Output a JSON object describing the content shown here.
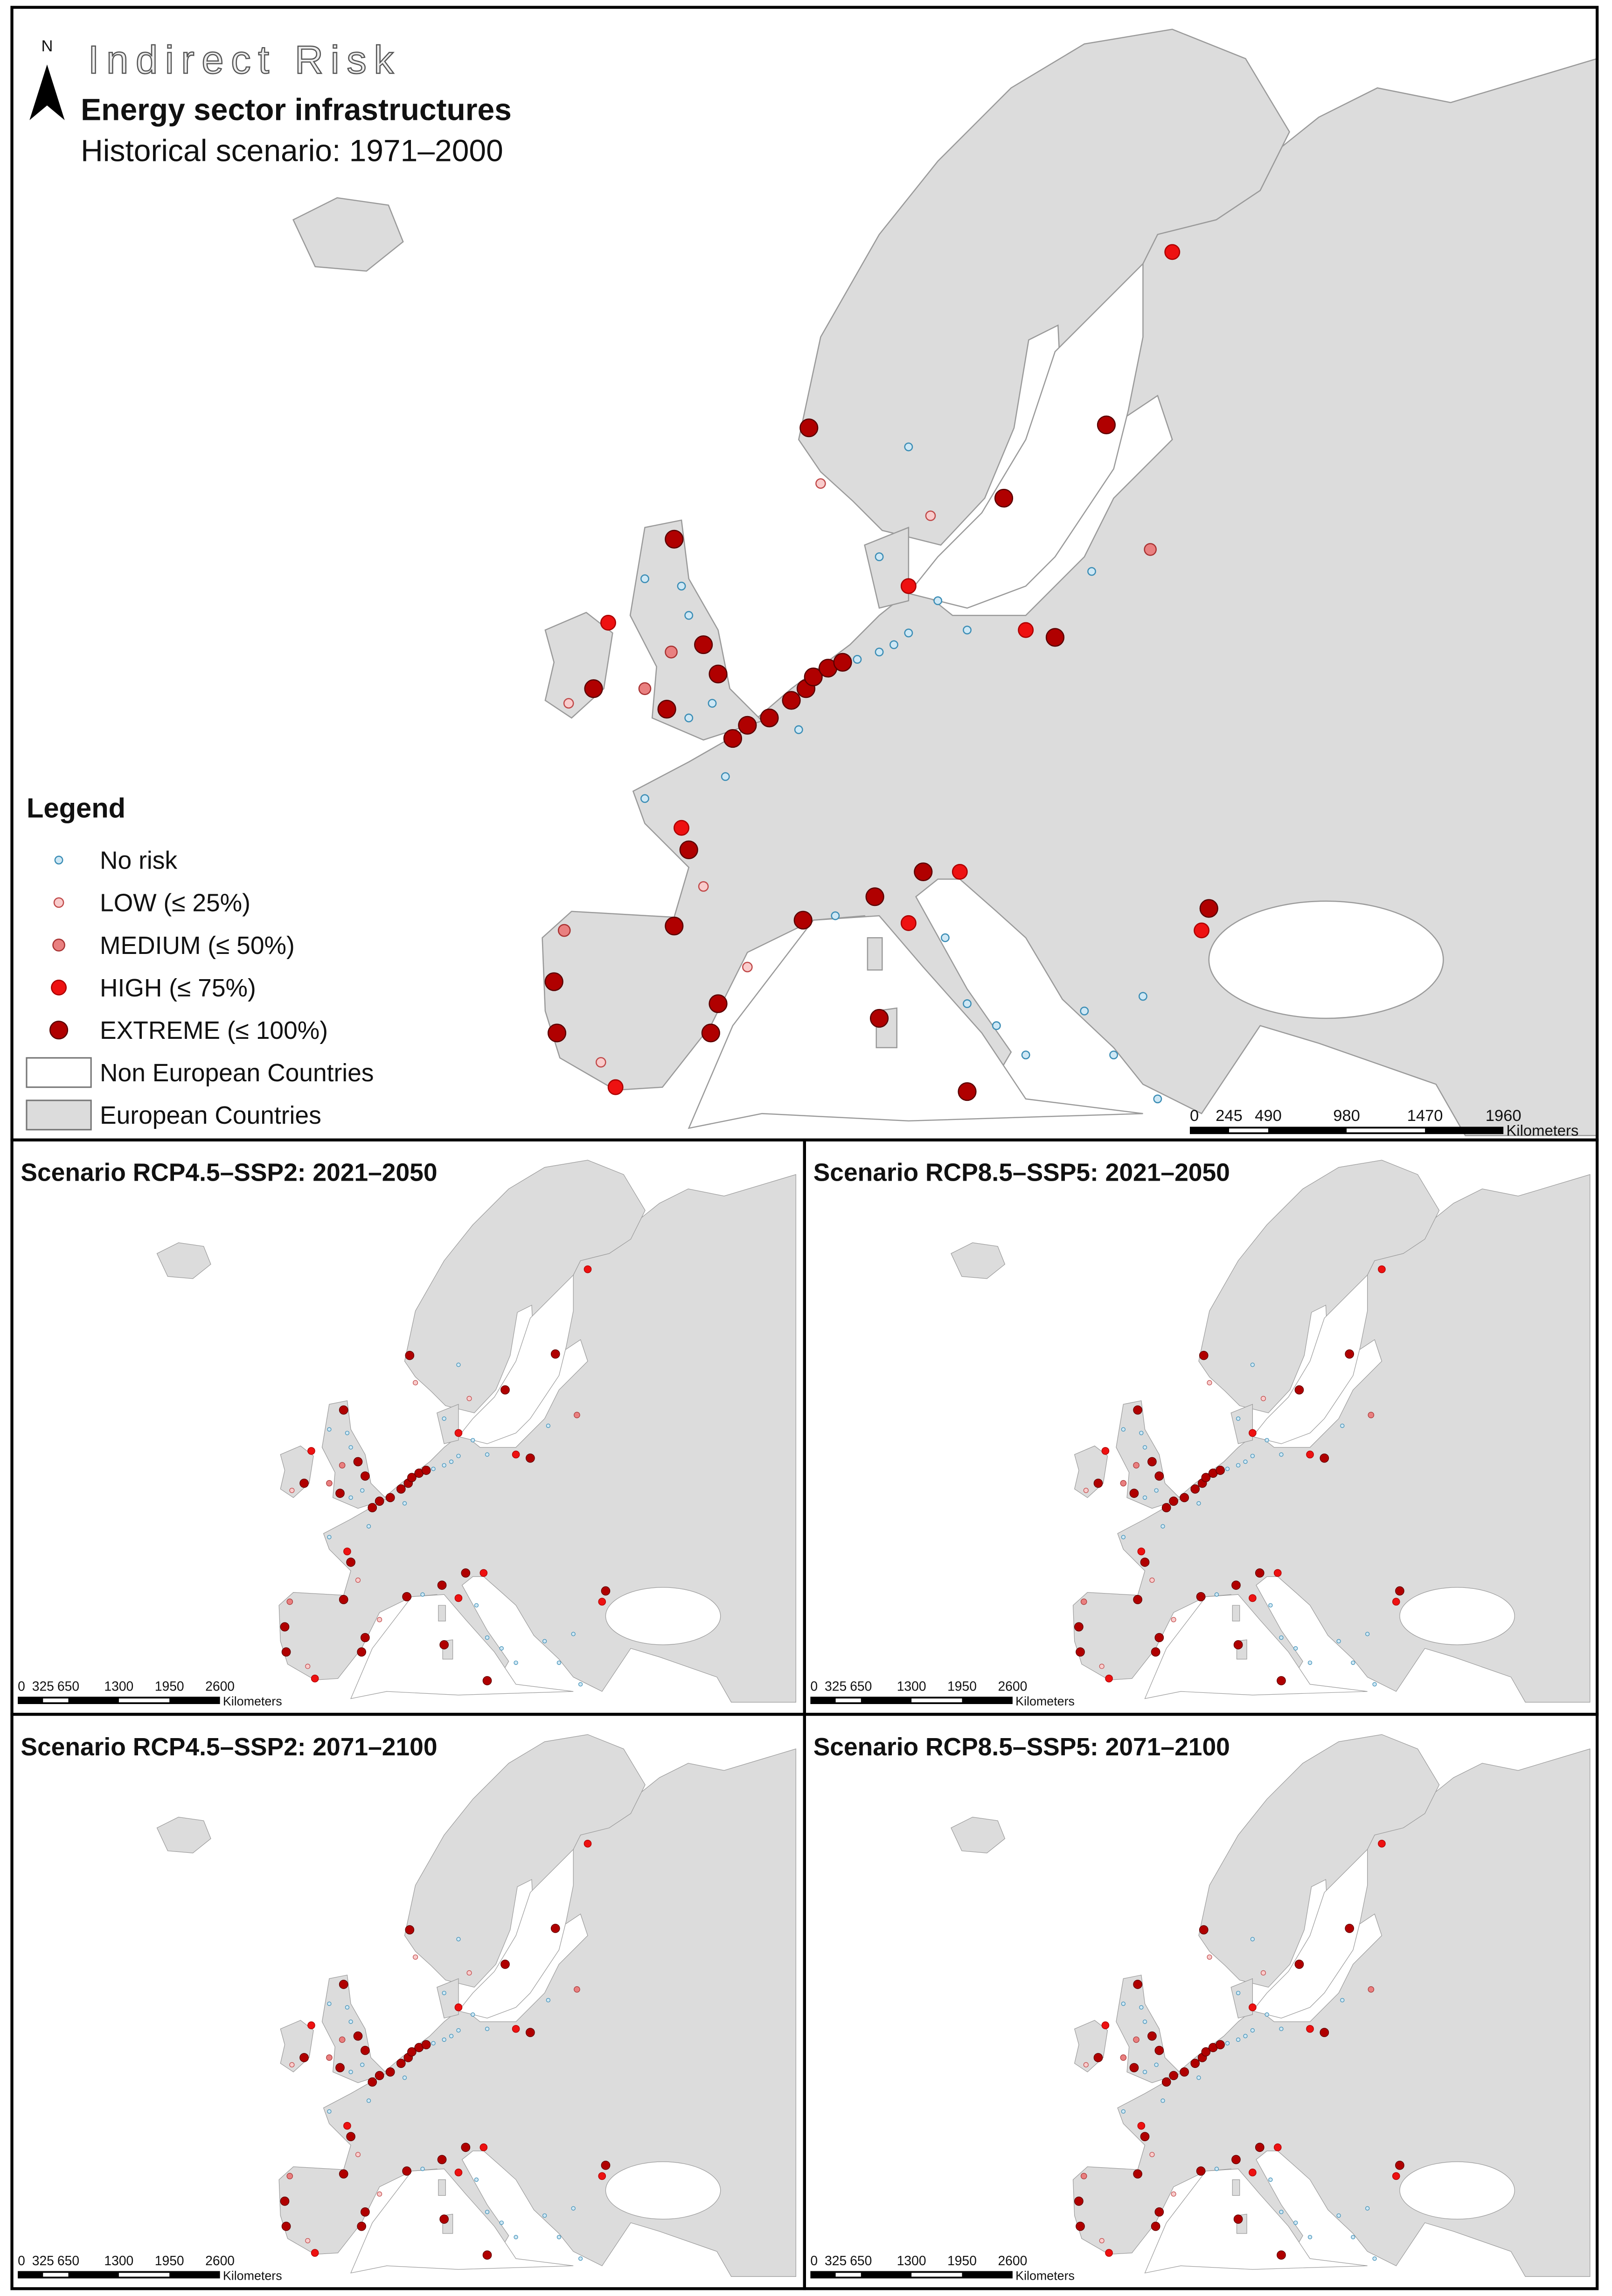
{
  "header": {
    "north": "N",
    "title": "Indirect Risk",
    "subtitle": "Energy sector infrastructures",
    "scenario": "Historical scenario: 1971–2000"
  },
  "legend": {
    "title": "Legend",
    "items": [
      "No risk",
      "LOW (≤ 25%)",
      "MEDIUM (≤ 50%)",
      "HIGH (≤ 75%)",
      "EXTREME (≤ 100%)",
      "Non European Countries",
      "European Countries"
    ]
  },
  "main_scale": {
    "labels": [
      "0",
      "245",
      "490",
      "980",
      "1470",
      "1960"
    ],
    "unit": "Kilometers"
  },
  "panels": [
    {
      "title": "Scenario RCP4.5–SSP2: 2021–2050",
      "scale": [
        "0",
        "325",
        "650",
        "1300",
        "1950",
        "2600"
      ],
      "unit": "Kilometers"
    },
    {
      "title": "Scenario RCP8.5–SSP5: 2021–2050",
      "scale": [
        "0",
        "325",
        "650",
        "1300",
        "1950",
        "2600"
      ],
      "unit": "Kilometers"
    },
    {
      "title": "Scenario RCP4.5–SSP2: 2071–2100",
      "scale": [
        "0",
        "325",
        "650",
        "1300",
        "1950",
        "2600"
      ],
      "unit": "Kilometers"
    },
    {
      "title": "Scenario RCP8.5–SSP5: 2071–2100",
      "scale": [
        "0",
        "325",
        "650",
        "1300",
        "1950",
        "2600"
      ],
      "unit": "Kilometers"
    }
  ]
}
